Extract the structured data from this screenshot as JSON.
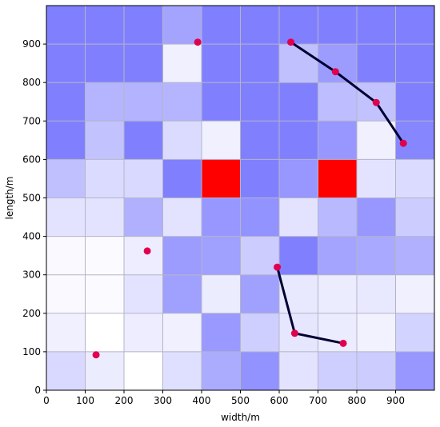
{
  "chart_data": {
    "type": "heatmap",
    "xlabel": "width/m",
    "ylabel": "length/m",
    "xlim": [
      0,
      1000
    ],
    "ylim": [
      0,
      1000
    ],
    "xticks": [
      0,
      100,
      200,
      300,
      400,
      500,
      600,
      700,
      800,
      900
    ],
    "yticks": [
      0,
      100,
      200,
      300,
      400,
      500,
      600,
      700,
      800,
      900
    ],
    "grid": true,
    "cell_size": 100,
    "palette": {
      "high": "#8080ff",
      "low": "#ffffff",
      "hotspot": "#ff0000",
      "grid": "#b4b4c8",
      "points": "#e0004f",
      "path": "#000033"
    },
    "cells": [
      [
        0.3,
        0.15,
        0.0,
        0.25,
        0.65,
        0.85,
        0.22,
        0.38,
        0.4,
        0.82
      ],
      [
        0.12,
        0.0,
        0.14,
        0.12,
        0.8,
        0.38,
        0.2,
        0.15,
        0.1,
        0.35
      ],
      [
        0.05,
        0.03,
        0.22,
        0.75,
        0.15,
        0.75,
        0.18,
        0.15,
        0.18,
        0.12
      ],
      [
        0.05,
        0.03,
        0.14,
        0.78,
        0.75,
        0.4,
        1.0,
        0.72,
        0.68,
        0.62
      ],
      [
        0.22,
        0.22,
        0.62,
        0.22,
        0.82,
        0.85,
        0.22,
        0.55,
        0.82,
        0.4
      ],
      [
        0.5,
        0.28,
        0.3,
        1.0,
        "hot",
        1.0,
        0.82,
        "hot",
        0.22,
        0.28
      ],
      [
        1.0,
        0.48,
        1.0,
        0.28,
        0.12,
        1.0,
        1.0,
        0.82,
        0.12,
        0.95
      ],
      [
        1.0,
        0.58,
        0.6,
        0.58,
        1.0,
        1.0,
        1.0,
        0.52,
        0.48,
        1.0
      ],
      [
        1.0,
        1.0,
        1.0,
        0.12,
        1.0,
        1.0,
        0.5,
        0.78,
        1.0,
        1.0
      ],
      [
        1.0,
        1.0,
        1.0,
        0.72,
        1.0,
        1.0,
        1.0,
        1.0,
        1.0,
        1.0
      ]
    ],
    "points": [
      {
        "x": 390,
        "y": 905
      },
      {
        "x": 630,
        "y": 905
      },
      {
        "x": 745,
        "y": 828
      },
      {
        "x": 850,
        "y": 748
      },
      {
        "x": 920,
        "y": 642
      },
      {
        "x": 260,
        "y": 362
      },
      {
        "x": 595,
        "y": 320
      },
      {
        "x": 640,
        "y": 148
      },
      {
        "x": 765,
        "y": 122
      },
      {
        "x": 128,
        "y": 92
      }
    ],
    "paths": [
      [
        [
          630,
          905
        ],
        [
          745,
          828
        ],
        [
          850,
          748
        ],
        [
          920,
          642
        ]
      ],
      [
        [
          595,
          320
        ],
        [
          640,
          148
        ],
        [
          765,
          122
        ]
      ]
    ]
  }
}
